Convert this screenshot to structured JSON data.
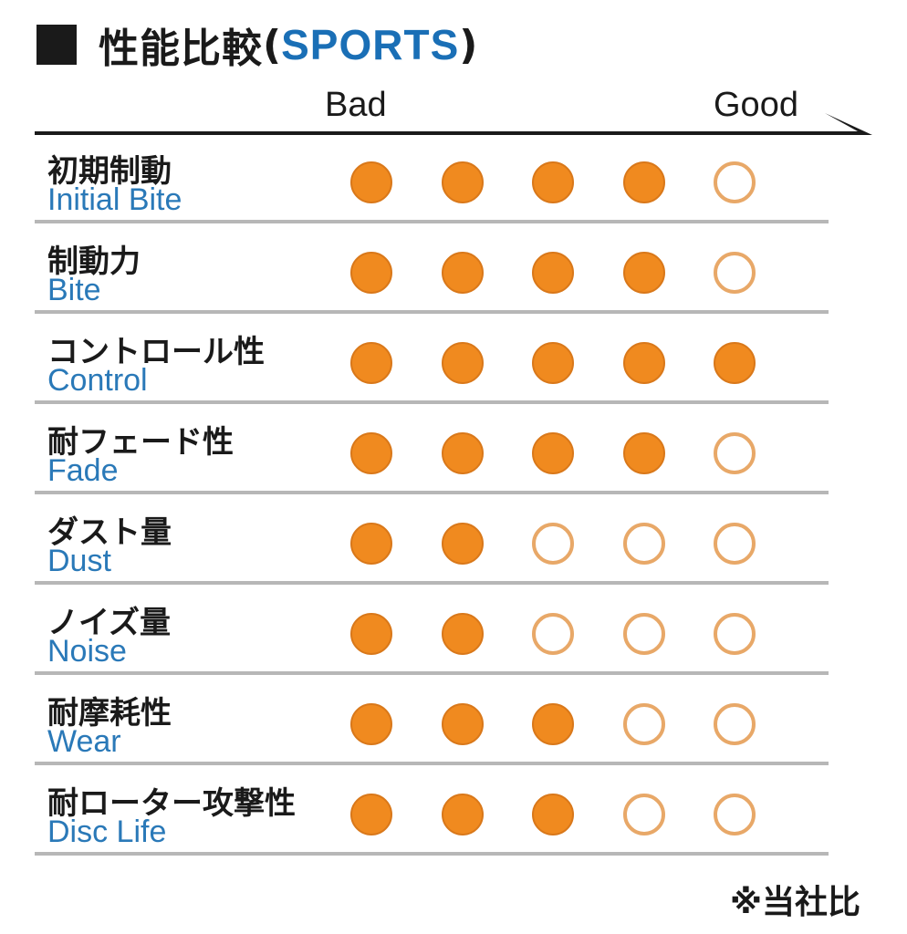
{
  "title": {
    "main": "性能比較",
    "paren_open": "(",
    "accent": "SPORTS",
    "paren_close": ")"
  },
  "scale": {
    "bad_label": "Bad",
    "good_label": "Good"
  },
  "colors": {
    "filled_dot": "#f08a1f",
    "empty_dot_ring": "#e8a868",
    "english_label": "#2a79b8",
    "accent": "#1a6fb6"
  },
  "chart_data": {
    "type": "table",
    "scale_max": 5,
    "rows": [
      {
        "label_ja": "初期制動",
        "label_en": "Initial Bite",
        "rating": 4
      },
      {
        "label_ja": "制動力",
        "label_en": "Bite",
        "rating": 4
      },
      {
        "label_ja": "コントロール性",
        "label_en": "Control",
        "rating": 5
      },
      {
        "label_ja": "耐フェード性",
        "label_en": "Fade",
        "rating": 4
      },
      {
        "label_ja": "ダスト量",
        "label_en": "Dust",
        "rating": 2
      },
      {
        "label_ja": "ノイズ量",
        "label_en": "Noise",
        "rating": 2
      },
      {
        "label_ja": "耐摩耗性",
        "label_en": "Wear",
        "rating": 3
      },
      {
        "label_ja": "耐ローター攻撃性",
        "label_en": "Disc Life",
        "rating": 3
      }
    ]
  },
  "footnote": "※当社比"
}
